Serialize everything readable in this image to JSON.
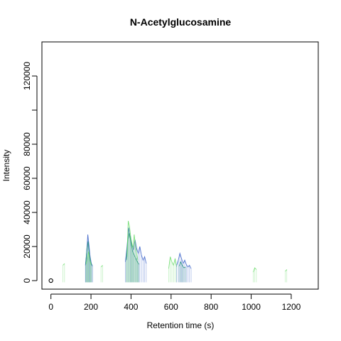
{
  "chart_data": {
    "type": "line",
    "title": "N-Acetylglucosamine",
    "xlabel": "Retention time (s)",
    "ylabel": "Intensity",
    "xlim": [
      -45,
      1335
    ],
    "ylim": [
      -5000,
      140000
    ],
    "x_ticks": [
      0,
      200,
      400,
      600,
      800,
      1000,
      1200
    ],
    "x_tick_labels": [
      "0",
      "200",
      "400",
      "600",
      "800",
      "1000",
      "1200"
    ],
    "y_ticks": [
      0,
      20000,
      40000,
      60000,
      80000,
      100000,
      120000
    ],
    "y_tick_labels": [
      "0",
      "20000",
      "40000",
      "60000",
      "80000",
      "",
      "120000"
    ],
    "grid": false,
    "legend": "none",
    "marker_point": {
      "x": 0,
      "y": 0
    },
    "series_colors": [
      "#3a62c8",
      "#1a8a7a",
      "#6fdc6f"
    ],
    "traces": [
      {
        "color": "#3a62c8",
        "x": [
          172,
          178,
          184,
          190,
          196,
          202,
          208
        ],
        "y": [
          9000,
          16000,
          27000,
          21000,
          14000,
          10000,
          8500
        ]
      },
      {
        "color": "#1a8a7a",
        "x": [
          174,
          180,
          186,
          192,
          198,
          204
        ],
        "y": [
          10000,
          19000,
          23000,
          15000,
          11000,
          9000
        ]
      },
      {
        "color": "#6fdc6f",
        "x": [
          176,
          182,
          188,
          194,
          200
        ],
        "y": [
          9500,
          13000,
          17000,
          12000,
          9500
        ]
      },
      {
        "color": "#3a62c8",
        "x": [
          372,
          380,
          388,
          396,
          404,
          412,
          420,
          428,
          436,
          444,
          452,
          460,
          468,
          476
        ],
        "y": [
          11000,
          20000,
          31000,
          25000,
          21000,
          18000,
          24000,
          19000,
          16000,
          20000,
          15000,
          12000,
          14000,
          10000
        ]
      },
      {
        "color": "#1a8a7a",
        "x": [
          376,
          384,
          392,
          400,
          408,
          416,
          424,
          432,
          440
        ],
        "y": [
          12000,
          24000,
          28000,
          22000,
          17000,
          15000,
          13000,
          11000,
          9500
        ]
      },
      {
        "color": "#6fdc6f",
        "x": [
          380,
          386,
          392,
          398,
          404,
          410,
          416,
          422,
          428,
          434
        ],
        "y": [
          14000,
          35000,
          32000,
          26000,
          22000,
          19000,
          27000,
          21000,
          16000,
          12000
        ]
      },
      {
        "color": "#6fdc6f",
        "x": [
          588,
          596,
          604,
          612,
          620,
          628
        ],
        "y": [
          7000,
          14000,
          11000,
          9000,
          13000,
          8000
        ]
      },
      {
        "color": "#3a62c8",
        "x": [
          628,
          636,
          644,
          652,
          660,
          668,
          676,
          684,
          692,
          700
        ],
        "y": [
          9000,
          12000,
          16000,
          13000,
          10000,
          12000,
          9500,
          8000,
          9000,
          7000
        ]
      },
      {
        "color": "#1a8a7a",
        "x": [
          640,
          648,
          656,
          664,
          672
        ],
        "y": [
          8500,
          11000,
          9000,
          7500,
          8000
        ]
      },
      {
        "color": "#6fdc6f",
        "x": [
          60,
          68
        ],
        "y": [
          9000,
          10000
        ]
      },
      {
        "color": "#6fdc6f",
        "x": [
          250,
          258
        ],
        "y": [
          8000,
          9000
        ]
      },
      {
        "color": "#6fdc6f",
        "x": [
          1010,
          1018,
          1026
        ],
        "y": [
          5000,
          7500,
          6500
        ]
      },
      {
        "color": "#6fdc6f",
        "x": [
          1170,
          1178
        ],
        "y": [
          5500,
          6500
        ]
      }
    ]
  }
}
